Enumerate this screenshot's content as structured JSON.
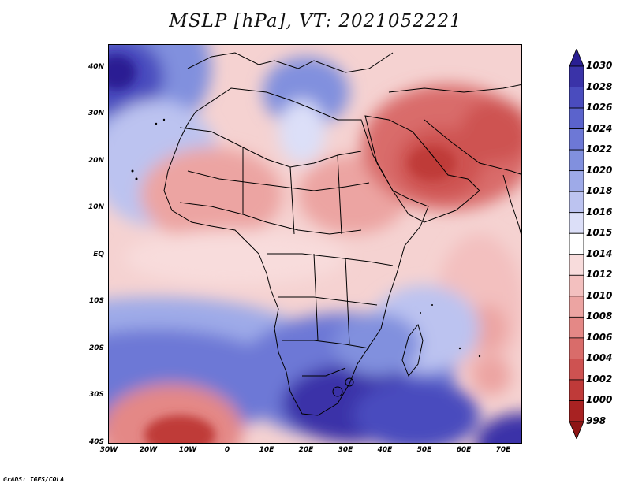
{
  "title": "MSLP [hPa], VT: 2021052221",
  "footer": "GrADS: IGES/COLA",
  "map": {
    "lat_labels": [
      "40N",
      "30N",
      "20N",
      "10N",
      "EQ",
      "10S",
      "20S",
      "30S",
      "40S"
    ],
    "lon_labels": [
      "30W",
      "20W",
      "10W",
      "0",
      "10E",
      "20E",
      "30E",
      "40E",
      "50E",
      "60E",
      "70E"
    ],
    "lat_range": [
      -40,
      44
    ],
    "lon_range": [
      -30,
      75
    ]
  },
  "colorbar": {
    "levels": [
      "1030",
      "1028",
      "1026",
      "1024",
      "1022",
      "1020",
      "1018",
      "1016",
      "1015",
      "1014",
      "1012",
      "1010",
      "1008",
      "1006",
      "1004",
      "1002",
      "1000",
      "998"
    ],
    "colors": [
      "#2a1f93",
      "#3a33a8",
      "#4a4cbe",
      "#5b63cc",
      "#6d78d6",
      "#8190de",
      "#9eaae8",
      "#bcc3f0",
      "#dcdff8",
      "#ffffff",
      "#f8dcdc",
      "#f3c0bf",
      "#eca4a2",
      "#e48886",
      "#d96c6a",
      "#ce5251",
      "#bf3a39",
      "#a82222",
      "#8e1515"
    ]
  }
}
